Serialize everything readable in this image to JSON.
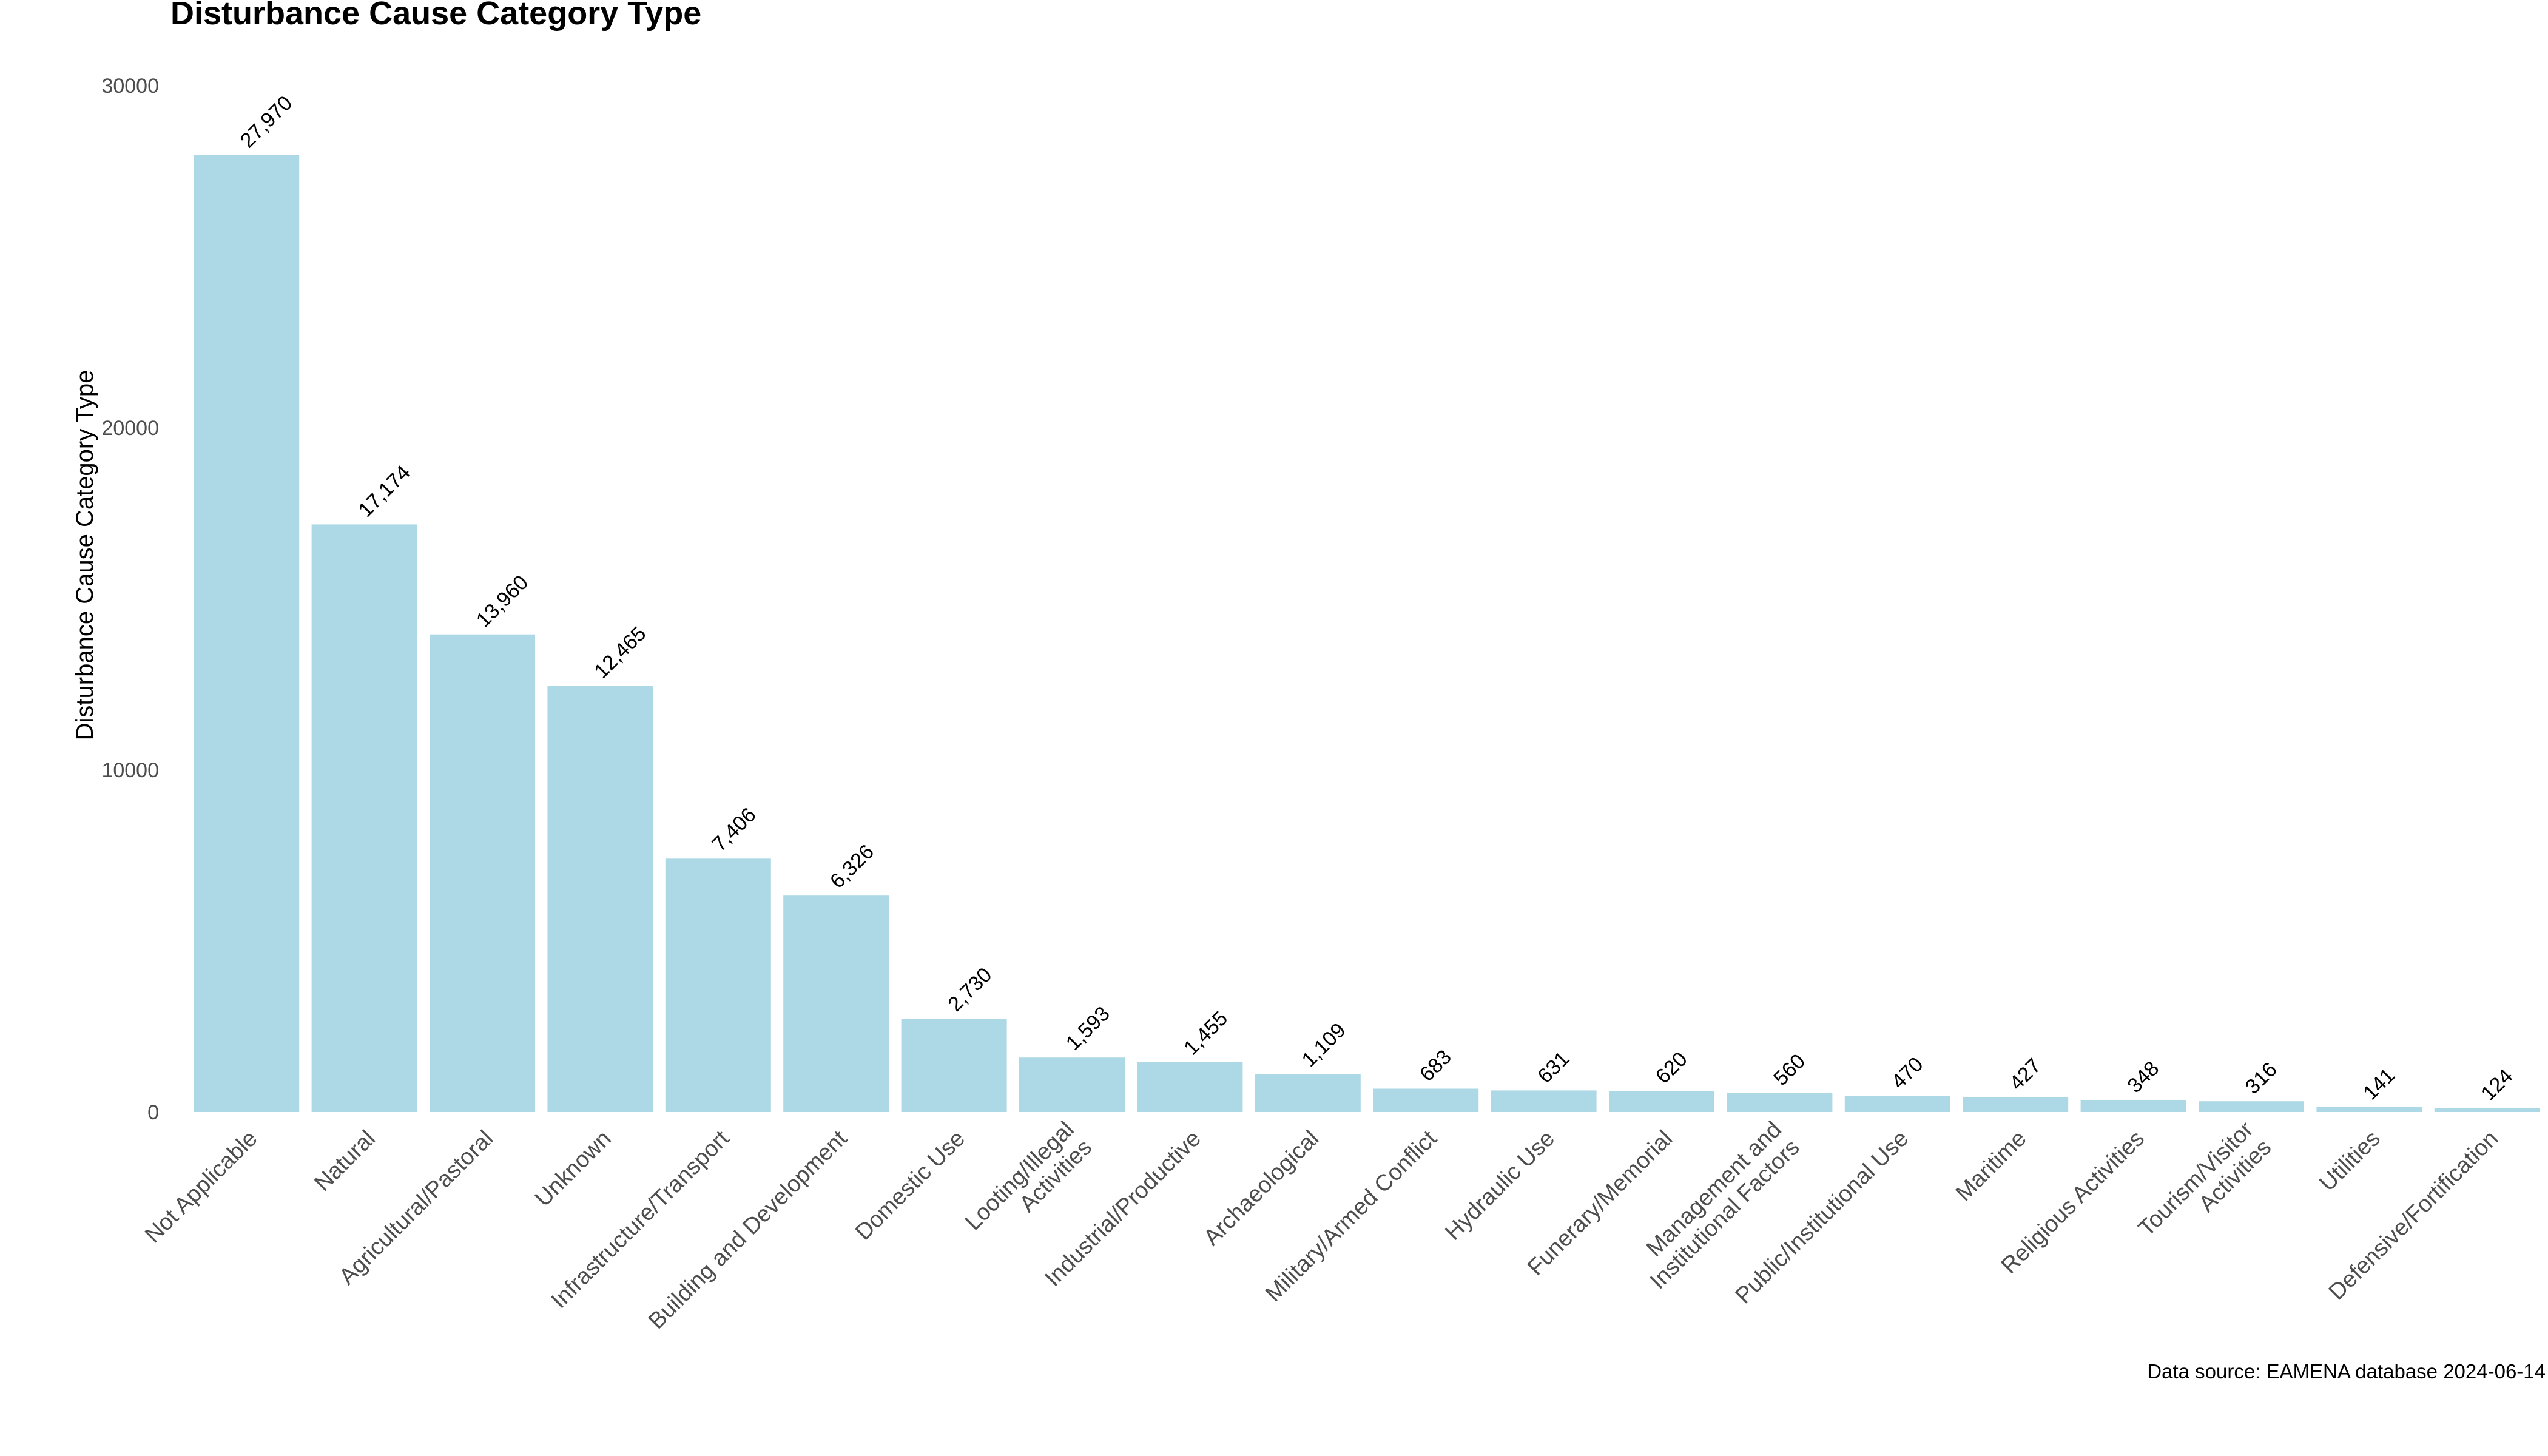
{
  "chart_data": {
    "type": "bar",
    "title": "Disturbance Cause Category Type",
    "ylabel": "Disturbance Cause Category Type",
    "xlabel": "",
    "ylim": [
      0,
      30000
    ],
    "yticks": [
      0,
      10000,
      20000,
      30000
    ],
    "grid": false,
    "legend": "none",
    "bar_color": "#add8e6",
    "categories": [
      [
        "Not Applicable"
      ],
      [
        "Natural"
      ],
      [
        "Agricultural/Pastoral"
      ],
      [
        "Unknown"
      ],
      [
        "Infrastructure/Transport"
      ],
      [
        "Building and Development"
      ],
      [
        "Domestic Use"
      ],
      [
        "Looting/Illegal",
        "Activities"
      ],
      [
        "Industrial/Productive"
      ],
      [
        "Archaeological"
      ],
      [
        "Military/Armed Conflict"
      ],
      [
        "Hydraulic Use"
      ],
      [
        "Funerary/Memorial"
      ],
      [
        "Management and",
        "Institutional Factors"
      ],
      [
        "Public/Institutional Use"
      ],
      [
        "Maritime"
      ],
      [
        "Religious Activities"
      ],
      [
        "Tourism/Visitor",
        "Activities"
      ],
      [
        "Utilities"
      ],
      [
        "Defensive/Fortification"
      ]
    ],
    "values": [
      27970,
      17174,
      13960,
      12465,
      7406,
      6326,
      2730,
      1593,
      1455,
      1109,
      683,
      631,
      620,
      560,
      470,
      427,
      348,
      316,
      141,
      124
    ],
    "value_labels": [
      "27,970",
      "17,174",
      "13,960",
      "12,465",
      "7,406",
      "6,326",
      "2,730",
      "1,593",
      "1,455",
      "1,109",
      "683",
      "631",
      "620",
      "560",
      "470",
      "427",
      "348",
      "316",
      "141",
      "124"
    ],
    "caption": "Data source: EAMENA database 2024-06-14"
  }
}
